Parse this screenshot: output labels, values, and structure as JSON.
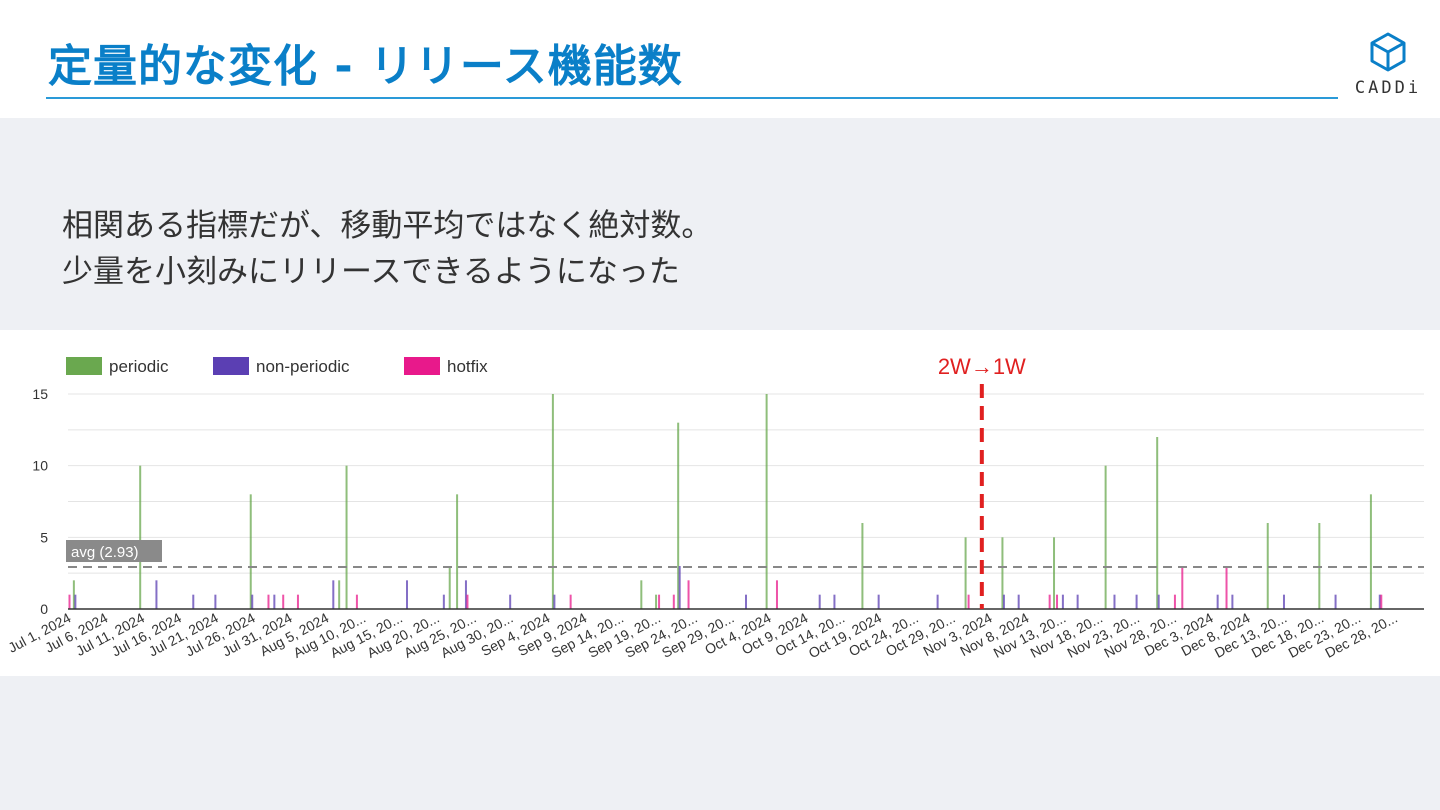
{
  "slide": {
    "title": "定量的な変化 - リリース機能数",
    "logo_text": "CADDi",
    "body_line1": "相関ある指標だが、移動平均ではなく絶対数。",
    "body_line2": "少量を小刻みにリリースできるようになった"
  },
  "colors": {
    "title": "#0a7fc8",
    "periodic": "#6aa84f",
    "non_periodic": "#5b3fb3",
    "hotfix": "#e8198b",
    "marker": "#e02020",
    "avg_line": "#888888"
  },
  "chart_data": {
    "type": "bar",
    "legend_position": "top-left",
    "grid": true,
    "ylim": [
      0,
      15
    ],
    "yticks": [
      0,
      5,
      10,
      15
    ],
    "x_start": "2024-07-01",
    "x_end": "2024-12-31",
    "xtick_labels": [
      "Jul 1, 2024",
      "Jul 6, 2024",
      "Jul 11, 2024",
      "Jul 16, 2024",
      "Jul 21, 2024",
      "Jul 26, 2024",
      "Jul 31, 2024",
      "Aug 5, 2024",
      "Aug 10, 20...",
      "Aug 15, 20...",
      "Aug 20, 20...",
      "Aug 25, 20...",
      "Aug 30, 20...",
      "Sep 4, 2024",
      "Sep 9, 2024",
      "Sep 14, 20...",
      "Sep 19, 20...",
      "Sep 24, 20...",
      "Sep 29, 20...",
      "Oct 4, 2024",
      "Oct 9, 2024",
      "Oct 14, 20...",
      "Oct 19, 2024",
      "Oct 24, 20...",
      "Oct 29, 20...",
      "Nov 3, 2024",
      "Nov 8, 2024",
      "Nov 13, 20...",
      "Nov 18, 20...",
      "Nov 23, 20...",
      "Nov 28, 20...",
      "Dec 3, 2024",
      "Dec 8, 2024",
      "Dec 13, 20...",
      "Dec 18, 20...",
      "Dec 23, 20...",
      "Dec 28, 20..."
    ],
    "series": [
      {
        "name": "periodic",
        "points": [
          {
            "date": "2024-07-02",
            "value": 2
          },
          {
            "date": "2024-07-11",
            "value": 10
          },
          {
            "date": "2024-07-26",
            "value": 8
          },
          {
            "date": "2024-08-07",
            "value": 2
          },
          {
            "date": "2024-08-08",
            "value": 10
          },
          {
            "date": "2024-08-22",
            "value": 3
          },
          {
            "date": "2024-08-23",
            "value": 8
          },
          {
            "date": "2024-09-05",
            "value": 15
          },
          {
            "date": "2024-09-17",
            "value": 2
          },
          {
            "date": "2024-09-19",
            "value": 1
          },
          {
            "date": "2024-09-22",
            "value": 13
          },
          {
            "date": "2024-10-04",
            "value": 15
          },
          {
            "date": "2024-10-17",
            "value": 6
          },
          {
            "date": "2024-10-31",
            "value": 5
          },
          {
            "date": "2024-11-05",
            "value": 5
          },
          {
            "date": "2024-11-12",
            "value": 5
          },
          {
            "date": "2024-11-19",
            "value": 10
          },
          {
            "date": "2024-11-26",
            "value": 12
          },
          {
            "date": "2024-12-11",
            "value": 6
          },
          {
            "date": "2024-12-18",
            "value": 6
          },
          {
            "date": "2024-12-25",
            "value": 8
          }
        ]
      },
      {
        "name": "non-periodic",
        "points": [
          {
            "date": "2024-07-02",
            "value": 1
          },
          {
            "date": "2024-07-13",
            "value": 2
          },
          {
            "date": "2024-07-18",
            "value": 1
          },
          {
            "date": "2024-07-21",
            "value": 1
          },
          {
            "date": "2024-07-26",
            "value": 1
          },
          {
            "date": "2024-07-29",
            "value": 1
          },
          {
            "date": "2024-08-06",
            "value": 2
          },
          {
            "date": "2024-08-16",
            "value": 2
          },
          {
            "date": "2024-08-21",
            "value": 1
          },
          {
            "date": "2024-08-24",
            "value": 2
          },
          {
            "date": "2024-08-30",
            "value": 1
          },
          {
            "date": "2024-09-05",
            "value": 1
          },
          {
            "date": "2024-09-22",
            "value": 3
          },
          {
            "date": "2024-10-01",
            "value": 1
          },
          {
            "date": "2024-10-11",
            "value": 1
          },
          {
            "date": "2024-10-13",
            "value": 1
          },
          {
            "date": "2024-10-19",
            "value": 1
          },
          {
            "date": "2024-10-27",
            "value": 1
          },
          {
            "date": "2024-11-05",
            "value": 1
          },
          {
            "date": "2024-11-07",
            "value": 1
          },
          {
            "date": "2024-11-13",
            "value": 1
          },
          {
            "date": "2024-11-15",
            "value": 1
          },
          {
            "date": "2024-11-20",
            "value": 1
          },
          {
            "date": "2024-11-23",
            "value": 1
          },
          {
            "date": "2024-11-26",
            "value": 1
          },
          {
            "date": "2024-12-04",
            "value": 1
          },
          {
            "date": "2024-12-06",
            "value": 1
          },
          {
            "date": "2024-12-13",
            "value": 1
          },
          {
            "date": "2024-12-20",
            "value": 1
          },
          {
            "date": "2024-12-26",
            "value": 1
          }
        ]
      },
      {
        "name": "hotfix",
        "points": [
          {
            "date": "2024-07-01",
            "value": 1
          },
          {
            "date": "2024-07-28",
            "value": 1
          },
          {
            "date": "2024-07-30",
            "value": 1
          },
          {
            "date": "2024-08-01",
            "value": 1
          },
          {
            "date": "2024-08-09",
            "value": 1
          },
          {
            "date": "2024-08-24",
            "value": 1
          },
          {
            "date": "2024-09-07",
            "value": 1
          },
          {
            "date": "2024-09-19",
            "value": 1
          },
          {
            "date": "2024-09-21",
            "value": 1
          },
          {
            "date": "2024-09-23",
            "value": 2
          },
          {
            "date": "2024-10-05",
            "value": 2
          },
          {
            "date": "2024-10-31",
            "value": 1
          },
          {
            "date": "2024-11-11",
            "value": 1
          },
          {
            "date": "2024-11-12",
            "value": 1
          },
          {
            "date": "2024-11-28",
            "value": 1
          },
          {
            "date": "2024-11-29",
            "value": 3
          },
          {
            "date": "2024-12-05",
            "value": 3
          },
          {
            "date": "2024-12-26",
            "value": 1
          }
        ]
      }
    ],
    "reference_lines": [
      {
        "type": "horizontal",
        "value": 2.93,
        "label": "avg (2.93)"
      },
      {
        "type": "vertical",
        "date": "2024-11-02",
        "label": "2W→1W"
      }
    ]
  }
}
